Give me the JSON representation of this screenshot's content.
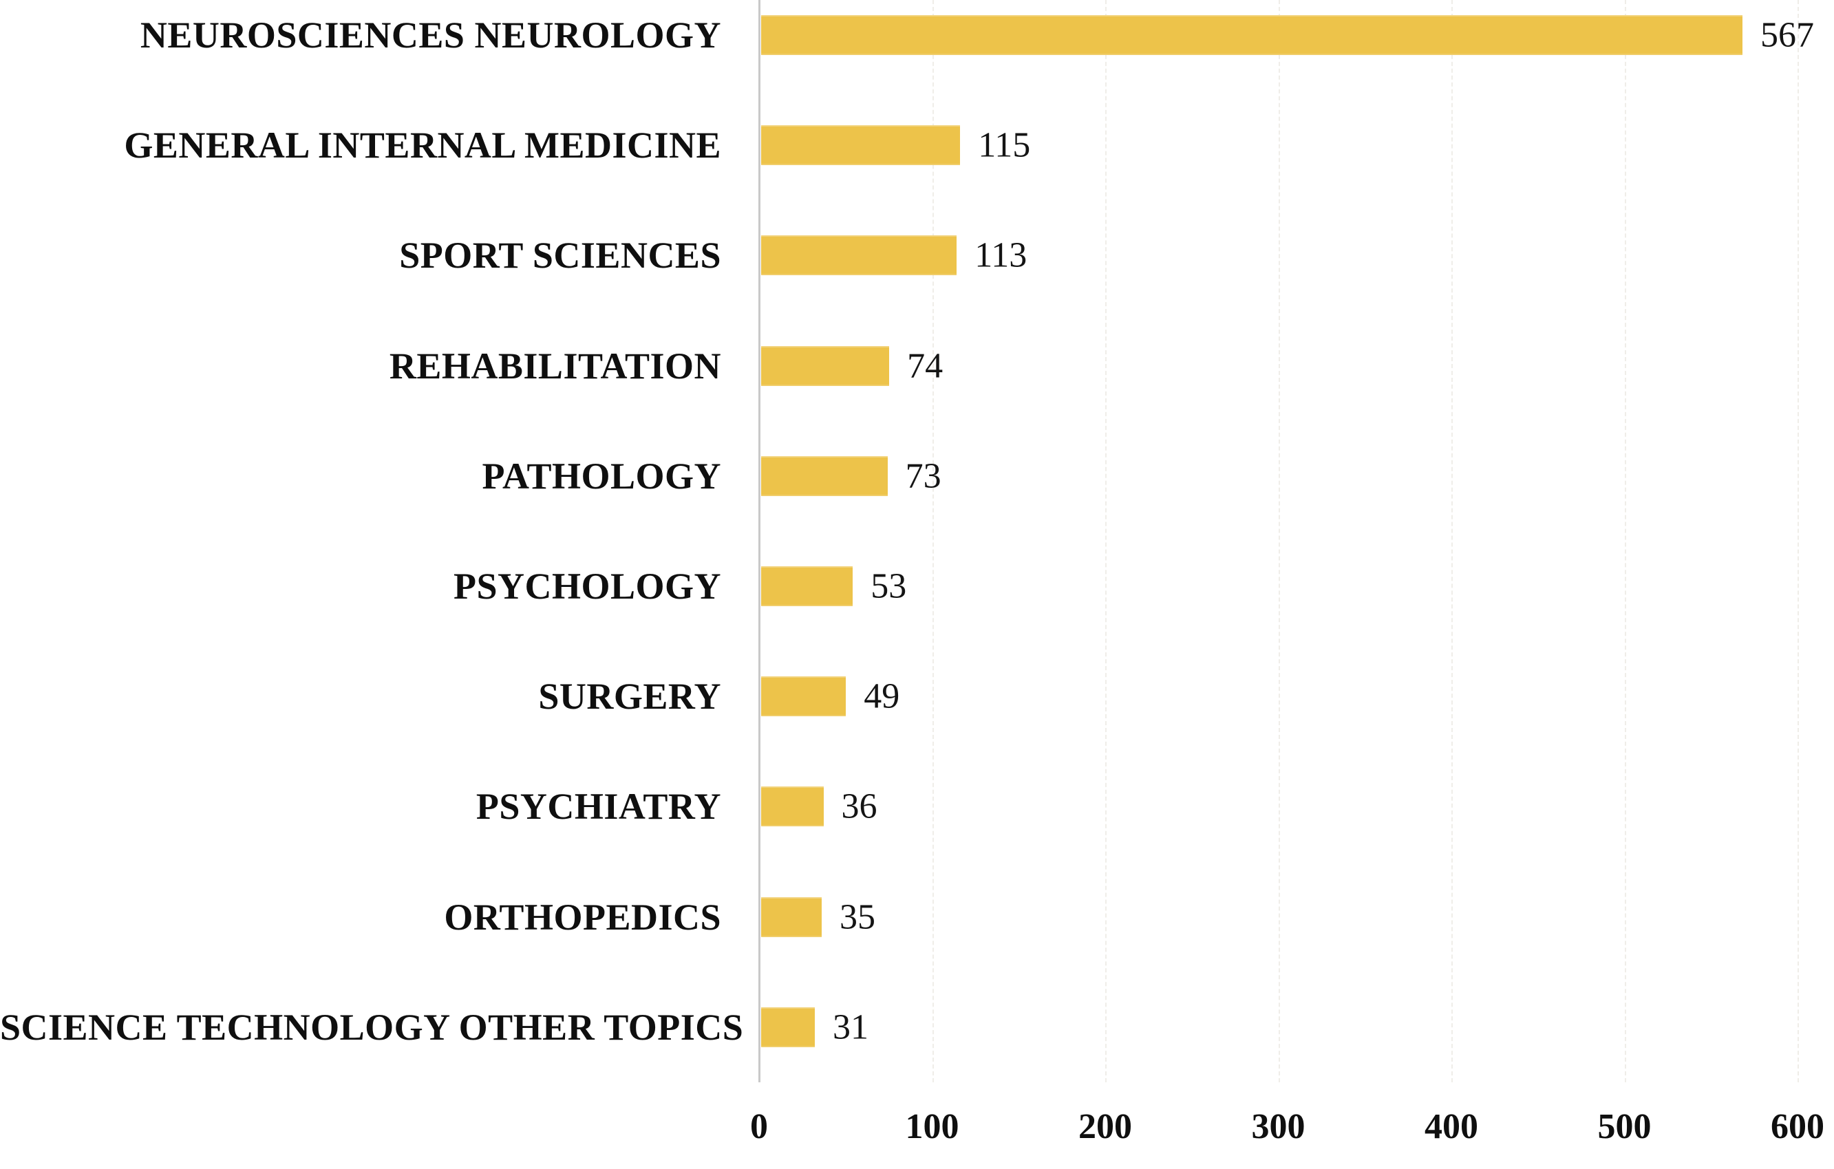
{
  "chart_data": {
    "type": "bar",
    "orientation": "horizontal",
    "title": "",
    "xlabel": "",
    "ylabel": "",
    "categories": [
      "NEUROSCIENCES NEUROLOGY",
      "GENERAL INTERNAL MEDICINE",
      "SPORT SCIENCES",
      "REHABILITATION",
      "PATHOLOGY",
      "PSYCHOLOGY",
      "SURGERY",
      "PSYCHIATRY",
      "ORTHOPEDICS",
      "SCIENCE TECHNOLOGY OTHER TOPICS"
    ],
    "values": [
      567,
      115,
      113,
      74,
      73,
      53,
      49,
      36,
      35,
      31
    ],
    "value_labels": [
      "567",
      "115",
      "113",
      "74",
      "73",
      "53",
      "49",
      "36",
      "35",
      "31"
    ],
    "xlim": [
      0,
      600
    ],
    "xticks": [
      0,
      100,
      200,
      300,
      400,
      500,
      600
    ],
    "grid": "very faint dashed vertical gridlines at each 100",
    "legend": "none",
    "bar_color": "#EDC34A",
    "axis_line_color": "#C9C9C9",
    "gridline_color": "#8C805C",
    "text_color": "#0F0F0F"
  }
}
